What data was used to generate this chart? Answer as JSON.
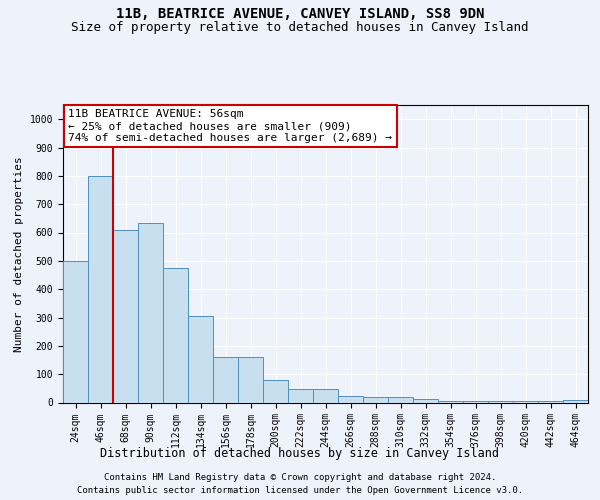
{
  "title": "11B, BEATRICE AVENUE, CANVEY ISLAND, SS8 9DN",
  "subtitle": "Size of property relative to detached houses in Canvey Island",
  "xlabel": "Distribution of detached houses by size in Canvey Island",
  "ylabel": "Number of detached properties",
  "bar_values": [
    500,
    800,
    610,
    635,
    475,
    305,
    162,
    162,
    80,
    47,
    47,
    22,
    20,
    20,
    12,
    5,
    5,
    5,
    5,
    5,
    8
  ],
  "bin_labels": [
    "24sqm",
    "46sqm",
    "68sqm",
    "90sqm",
    "112sqm",
    "134sqm",
    "156sqm",
    "178sqm",
    "200sqm",
    "222sqm",
    "244sqm",
    "266sqm",
    "288sqm",
    "310sqm",
    "332sqm",
    "354sqm",
    "376sqm",
    "398sqm",
    "420sqm",
    "442sqm",
    "464sqm"
  ],
  "bar_color": "#c8dff0",
  "bar_edge_color": "#5090c0",
  "red_line_x": 1.5,
  "highlight_line_color": "#cc0000",
  "annotation_text": "11B BEATRICE AVENUE: 56sqm\n← 25% of detached houses are smaller (909)\n74% of semi-detached houses are larger (2,689) →",
  "annotation_box_facecolor": "white",
  "annotation_box_edgecolor": "#cc0000",
  "ylim_max": 1050,
  "yticks": [
    0,
    100,
    200,
    300,
    400,
    500,
    600,
    700,
    800,
    900,
    1000
  ],
  "footer_line1": "Contains HM Land Registry data © Crown copyright and database right 2024.",
  "footer_line2": "Contains public sector information licensed under the Open Government Licence v3.0.",
  "bg_color": "#eef2fb",
  "grid_color": "#ffffff",
  "title_fontsize": 10,
  "subtitle_fontsize": 9,
  "ylabel_fontsize": 8,
  "xlabel_fontsize": 8.5,
  "tick_fontsize": 7,
  "annotation_fontsize": 8,
  "footer_fontsize": 6.5
}
